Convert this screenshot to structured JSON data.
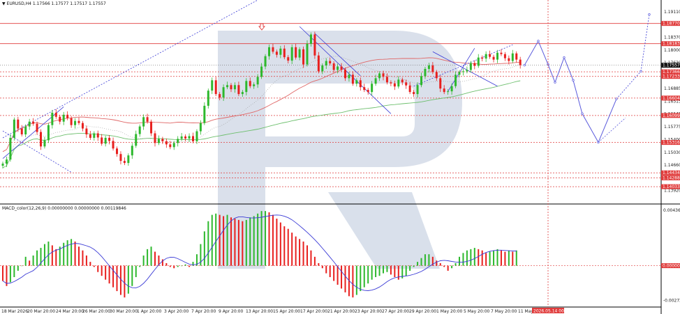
{
  "header": {
    "symbol_line": "▼ EURUSD,H4  1.17566 1.17577 1.17517 1.17557",
    "macd_line": "MACD_color(12,26,9) 0.00000000 0.00000000 0.00119846"
  },
  "colors": {
    "bull": "#2db82d",
    "bear": "#e8201e",
    "ma_red": "#e06666",
    "ma_green": "#6dbf6d",
    "signal": "#3b3bd6",
    "forecast": "#5a5adc",
    "level": "#e03b3b",
    "watermark": "#d3dbe8"
  },
  "chart_data": [
    {
      "type": "candlestick",
      "panel": "price",
      "title": "EURUSD,H4",
      "ohlc_last": {
        "open": 1.17566,
        "high": 1.17577,
        "low": 1.17517,
        "close": 1.17557
      },
      "ylim": [
        1.1355,
        1.1945
      ],
      "y_tick_labels": [
        "1.19110",
        "1.18370",
        "1.18000",
        "1.17630",
        "1.17255",
        "1.16885",
        "1.16515",
        "1.16145",
        "1.15775",
        "1.15400",
        "1.15030",
        "1.14660",
        "1.14290",
        "1.13920"
      ],
      "y_ticks": [
        1.1911,
        1.1837,
        1.18,
        1.1763,
        1.17255,
        1.16885,
        1.16515,
        1.16145,
        1.15775,
        1.154,
        1.1503,
        1.1466,
        1.1429,
        1.1392
      ],
      "x_tick_labels": [
        "18 Mar 2026",
        "20 Mar 20:00",
        "24 Mar 20:00",
        "26 Mar 20:00",
        "30 Mar 20:00",
        "1 Apr 20:00",
        "3 Apr 20:00",
        "7 Apr 20:00",
        "9 Apr 20:00",
        "13 Apr 20:00",
        "15 Apr 20:00",
        "17 Apr 20:00",
        "21 Apr 20:00",
        "23 Apr 20:00",
        "27 Apr 20:00",
        "29 Apr 20:00",
        "1 May 20:00",
        "5 May 20:00",
        "7 May 20:00",
        "11 May 2"
      ],
      "horizontal_levels": [
        {
          "value": 1.1877,
          "label": "1.18770",
          "style": "solid"
        },
        {
          "value": 1.18183,
          "label": "1.18183",
          "style": "solid"
        },
        {
          "value": 1.17557,
          "label": "1.17557",
          "style": "current"
        },
        {
          "value": 1.17366,
          "label": "1.17366",
          "style": "dashed"
        },
        {
          "value": 1.17233,
          "label": "1.17233",
          "style": "dashed"
        },
        {
          "value": 1.16604,
          "label": "1.16604",
          "style": "dashed"
        },
        {
          "value": 1.16099,
          "label": "1.16099",
          "style": "dashed"
        },
        {
          "value": 1.15316,
          "label": "1.15316",
          "style": "dashed"
        },
        {
          "value": 1.14434,
          "label": "1.14434",
          "style": "dashed"
        },
        {
          "value": 1.14288,
          "label": "1.14288",
          "style": "dashed"
        },
        {
          "value": 1.14033,
          "label": "1.14033",
          "style": "dashed"
        }
      ],
      "closes": [
        1.147,
        1.1482,
        1.1545,
        1.1598,
        1.1572,
        1.1555,
        1.1578,
        1.1592,
        1.1586,
        1.1562,
        1.152,
        1.1538,
        1.1582,
        1.1618,
        1.1606,
        1.1592,
        1.1612,
        1.1602,
        1.1582,
        1.1594,
        1.1588,
        1.1572,
        1.1555,
        1.1545,
        1.1558,
        1.1546,
        1.1528,
        1.1545,
        1.1536,
        1.1514,
        1.1498,
        1.1478,
        1.1472,
        1.1494,
        1.1522,
        1.1556,
        1.1578,
        1.1605,
        1.1592,
        1.1558,
        1.153,
        1.1542,
        1.1535,
        1.1526,
        1.1518,
        1.153,
        1.1542,
        1.1549,
        1.1543,
        1.155,
        1.1535,
        1.1564,
        1.1588,
        1.1638,
        1.1682,
        1.1712,
        1.1672,
        1.1662,
        1.1692,
        1.1698,
        1.1686,
        1.1698,
        1.1672,
        1.1678,
        1.171,
        1.1695,
        1.17,
        1.1722,
        1.1752,
        1.1782,
        1.1808,
        1.1795,
        1.1786,
        1.1804,
        1.1779,
        1.1769,
        1.1808,
        1.1778,
        1.1802,
        1.1758,
        1.1818,
        1.1845,
        1.1784,
        1.1738,
        1.1755,
        1.1768,
        1.1761,
        1.1742,
        1.1752,
        1.1743,
        1.1718,
        1.1728,
        1.1702,
        1.1712,
        1.1692,
        1.1684,
        1.1678,
        1.1702,
        1.1718,
        1.1732,
        1.1722,
        1.1706,
        1.1703,
        1.1694,
        1.1714,
        1.1706,
        1.1697,
        1.1678,
        1.1672,
        1.1698,
        1.1724,
        1.1745,
        1.1755,
        1.1736,
        1.1718,
        1.1688,
        1.1678,
        1.168,
        1.1695,
        1.1728,
        1.1736,
        1.1738,
        1.1742,
        1.1762,
        1.1754,
        1.1778,
        1.1775,
        1.1788,
        1.178,
        1.1772,
        1.1792,
        1.1788,
        1.1776,
        1.1768,
        1.179,
        1.1772,
        1.1756
      ],
      "forecast_path": [
        1.17557,
        1.1826,
        1.1758,
        1.1706,
        1.1778,
        1.1712,
        1.1615,
        1.1532,
        1.1658,
        1.1738,
        1.1903
      ]
    },
    {
      "type": "bar",
      "panel": "indicator",
      "title": "MACD_color(12,26,9)",
      "ylim": [
        -0.0032,
        0.0048
      ],
      "y_tick_labels": [
        "0.0043673",
        "0.000000",
        "-0.0027298"
      ],
      "y_ticks": [
        0.0043673,
        0.0,
        -0.0027298
      ],
      "current_value": 0.00119846,
      "histogram": [
        -0.0012,
        -0.0016,
        -0.0013,
        -0.0009,
        -0.0004,
        0.0,
        0.0007,
        0.0004,
        0.0008,
        0.0012,
        0.0014,
        0.0017,
        0.0019,
        0.0016,
        0.0013,
        0.0015,
        0.0018,
        0.002,
        0.0021,
        0.0019,
        0.0015,
        0.0012,
        0.0008,
        0.0003,
        -0.0001,
        -0.0005,
        -0.0008,
        -0.0011,
        -0.0014,
        -0.0017,
        -0.002,
        -0.0023,
        -0.0025,
        -0.0022,
        -0.0016,
        -0.0009,
        -0.0001,
        0.0008,
        0.0013,
        0.0015,
        0.0011,
        0.0008,
        0.0005,
        0.0002,
        -0.0001,
        -0.0002,
        -0.0001,
        0.0,
        0.0001,
        -0.0001,
        0.0003,
        0.0009,
        0.0017,
        0.0027,
        0.0035,
        0.004,
        0.0041,
        0.004,
        0.0039,
        0.004,
        0.0038,
        0.0037,
        0.0036,
        0.0035,
        0.0036,
        0.0038,
        0.0039,
        0.0041,
        0.0043,
        0.0043,
        0.0042,
        0.004,
        0.0037,
        0.0034,
        0.0031,
        0.0029,
        0.0026,
        0.0023,
        0.0021,
        0.0019,
        0.0016,
        0.0012,
        0.0007,
        0.0002,
        -0.0002,
        -0.0006,
        -0.0009,
        -0.0012,
        -0.0015,
        -0.0018,
        -0.0021,
        -0.0024,
        -0.0025,
        -0.0023,
        -0.002,
        -0.0017,
        -0.0014,
        -0.0011,
        -0.0009,
        -0.0008,
        -0.0006,
        -0.0005,
        -0.0007,
        -0.0009,
        -0.0011,
        -0.001,
        -0.0008,
        -0.0004,
        -0.0001,
        0.0003,
        0.0006,
        0.0009,
        0.0009,
        0.0007,
        0.0004,
        0.0002,
        -0.0001,
        -0.0004,
        -0.0002,
        0.0002,
        0.0007,
        0.001,
        0.0012,
        0.0013,
        0.0014,
        0.0013,
        0.0012,
        0.001,
        0.0011,
        0.0012,
        0.0013,
        0.0012,
        0.0011,
        0.0012,
        0.0011,
        0.0012
      ]
    }
  ],
  "axis_tags": {
    "current_price": "1.17557",
    "current_time": "2026.05.14 00:00"
  }
}
